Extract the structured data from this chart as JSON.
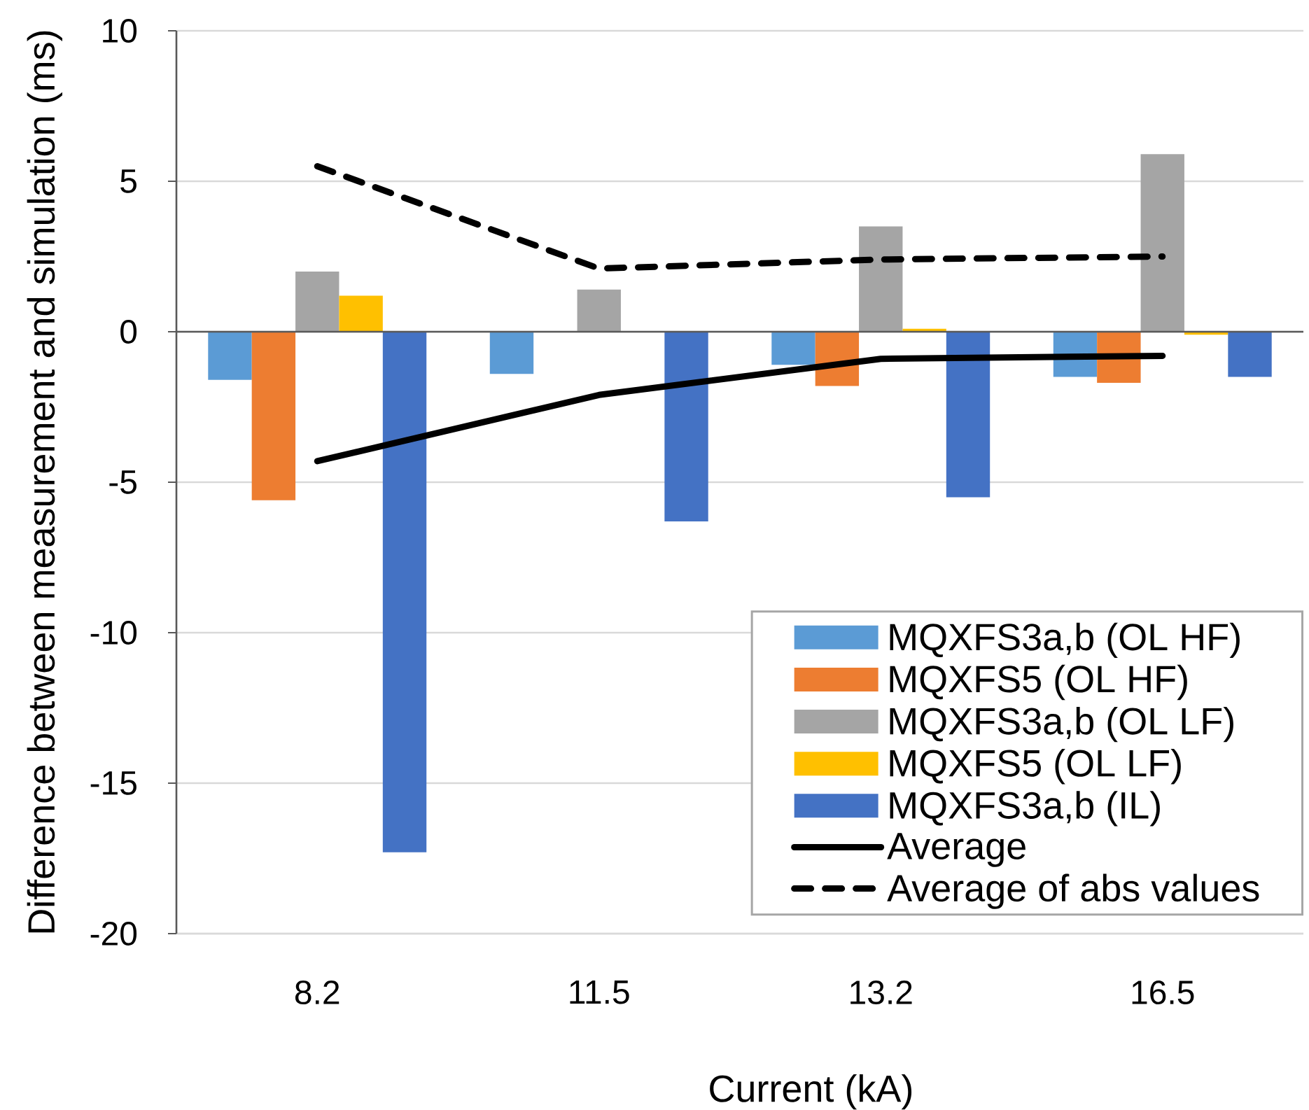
{
  "chart_data": {
    "type": "bar",
    "xlabel": "Current (kA)",
    "ylabel": "Difference between measurement and simulation (ms)",
    "categories": [
      "8.2",
      "11.5",
      "13.2",
      "16.5"
    ],
    "series": [
      {
        "name": "MQXFS3a,b (OL HF)",
        "color": "#5b9bd5",
        "values": [
          -1.6,
          -1.4,
          -1.1,
          -1.5
        ]
      },
      {
        "name": "MQXFS5 (OL HF)",
        "color": "#ed7d31",
        "values": [
          -5.6,
          null,
          -1.8,
          -1.7
        ]
      },
      {
        "name": "MQXFS3a,b (OL LF)",
        "color": "#a5a5a5",
        "values": [
          2.0,
          1.4,
          3.5,
          5.9
        ]
      },
      {
        "name": "MQXFS5 (OL LF)",
        "color": "#ffc000",
        "values": [
          1.2,
          null,
          0.1,
          -0.1
        ]
      },
      {
        "name": "MQXFS3a,b (IL)",
        "color": "#4472c4",
        "values": [
          -17.3,
          -6.3,
          -5.5,
          -1.5
        ]
      },
      {
        "name": "Average",
        "type": "line",
        "color": "#000000",
        "line_style": "solid",
        "values": [
          -4.3,
          -2.1,
          -0.9,
          -0.8
        ]
      },
      {
        "name": "Average of abs values",
        "type": "line",
        "color": "#000000",
        "line_style": "dashed",
        "values": [
          5.5,
          2.1,
          2.4,
          2.5
        ]
      }
    ],
    "ylim": [
      -20,
      10
    ],
    "yticks": [
      -20,
      -15,
      -10,
      -5,
      0,
      5,
      10
    ],
    "grid": "y",
    "legend": "bottom right"
  }
}
